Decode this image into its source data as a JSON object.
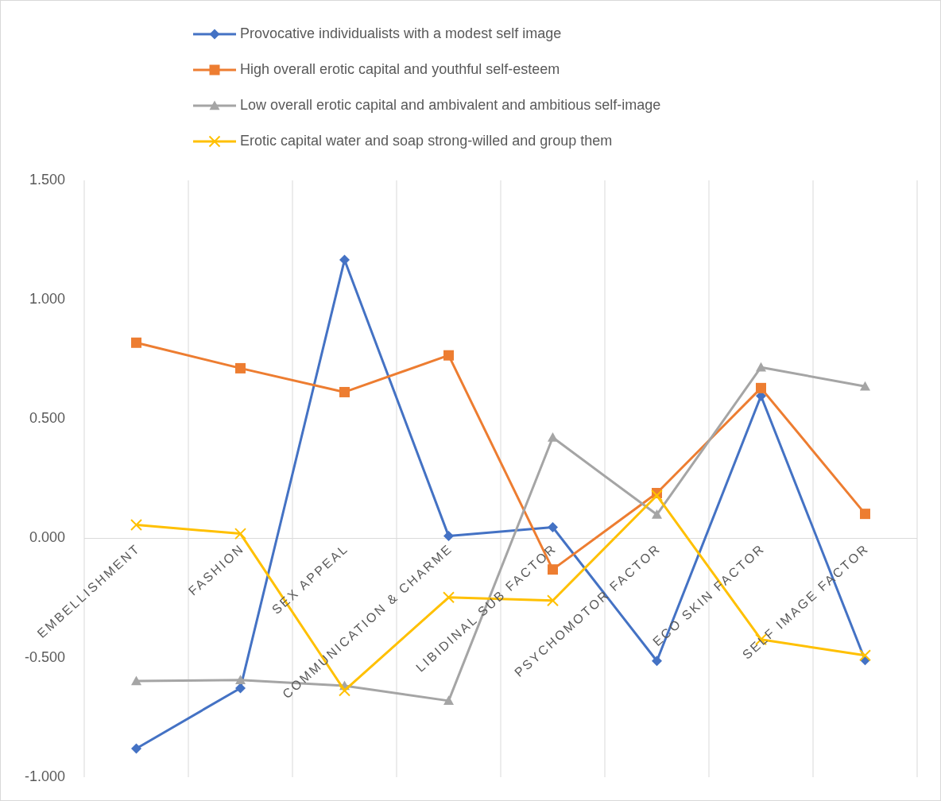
{
  "chart_data": {
    "type": "line",
    "categories": [
      "EMBELLISHMENT",
      "FASHION",
      "SEX APPEAL",
      "COMMUNICATION & CHARME",
      "LIBIDINAL SUB FACTOR",
      "PSYCHOMOTOR FACTOR",
      "ECO SKIN FACTOR",
      "SELF IMAGE FACTOR"
    ],
    "series": [
      {
        "name": "Provocative individualists with a modest self image",
        "color": "#4472c4",
        "marker": "diamond",
        "values": [
          -0.88,
          -0.627,
          1.167,
          0.01,
          0.047,
          -0.513,
          0.597,
          -0.51
        ]
      },
      {
        "name": "High overall erotic capital and youthful self-esteem",
        "color": "#ed7d31",
        "marker": "square",
        "values": [
          0.82,
          0.713,
          0.613,
          0.767,
          -0.13,
          0.19,
          0.63,
          0.103
        ]
      },
      {
        "name": "Low overall erotic capital and ambivalent and ambitious self-image",
        "color": "#a5a5a5",
        "marker": "triangle",
        "values": [
          -0.597,
          -0.593,
          -0.617,
          -0.68,
          0.423,
          0.1,
          0.717,
          0.637
        ]
      },
      {
        "name": "Erotic capital water and soap strong-willed and group them",
        "color": "#ffc000",
        "marker": "cross",
        "values": [
          0.057,
          0.02,
          -0.637,
          -0.247,
          -0.26,
          0.18,
          -0.423,
          -0.49
        ]
      }
    ],
    "ylim": [
      -1,
      1.5
    ],
    "yticks": [
      {
        "value": -1,
        "label": "-1.000"
      },
      {
        "value": -0.5,
        "label": "-0.500"
      },
      {
        "value": 0,
        "label": "0.000"
      },
      {
        "value": 0.5,
        "label": "0.500"
      },
      {
        "value": 1,
        "label": "1.000"
      },
      {
        "value": 1.5,
        "label": "1.500"
      }
    ],
    "grid": "x",
    "legend": "top",
    "line_style": "solid"
  }
}
